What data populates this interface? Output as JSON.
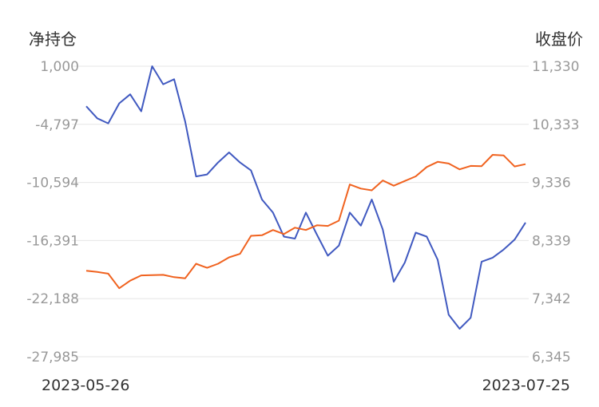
{
  "chart_data": {
    "type": "line",
    "left_axis_title": "净持仓",
    "right_axis_title": "收盘价",
    "left_ticks": [
      "1,000",
      "-4,797",
      "-10,594",
      "-16,391",
      "-22,188",
      "-27,985"
    ],
    "right_ticks": [
      "11,330",
      "10,333",
      "9,336",
      "8,339",
      "7,342",
      "6,345"
    ],
    "left_ylim": [
      -27985,
      1000
    ],
    "right_ylim": [
      6345,
      11330
    ],
    "x_labels": [
      "2023-05-26",
      "2023-07-25"
    ],
    "grid": true,
    "series": [
      {
        "axis": "left",
        "color": "#4059c0",
        "values": [
          -3000,
          -4200,
          -4700,
          -2700,
          -1800,
          -3500,
          1000,
          -800,
          -300,
          -4500,
          -10000,
          -9800,
          -8600,
          -7600,
          -8600,
          -9400,
          -12300,
          -13600,
          -16000,
          -16200,
          -13600,
          -15800,
          -17900,
          -16900,
          -13600,
          -14900,
          -12300,
          -15300,
          -20500,
          -18600,
          -15600,
          -16000,
          -18300,
          -23800,
          -25200,
          -24100,
          -18500,
          -18100,
          -17300,
          -16300,
          -14600
        ]
      },
      {
        "axis": "right",
        "color": "#f0621f",
        "values": [
          7820,
          7800,
          7770,
          7520,
          7650,
          7740,
          7745,
          7750,
          7710,
          7690,
          7940,
          7870,
          7940,
          8050,
          8110,
          8420,
          8430,
          8520,
          8450,
          8560,
          8520,
          8600,
          8590,
          8680,
          9300,
          9230,
          9200,
          9370,
          9280,
          9360,
          9440,
          9600,
          9690,
          9660,
          9560,
          9620,
          9615,
          9810,
          9800,
          9610,
          9650
        ]
      }
    ]
  }
}
